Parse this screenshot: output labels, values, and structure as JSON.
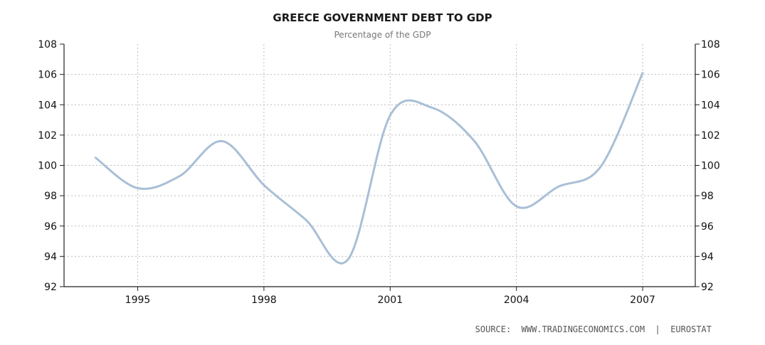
{
  "chart_data": {
    "type": "line",
    "title": "GREECE GOVERNMENT DEBT TO GDP",
    "subtitle": "Percentage of the GDP",
    "xlabel": "",
    "ylabel": "",
    "xlim": [
      1993.25,
      2008.25
    ],
    "ylim": [
      92,
      108
    ],
    "x_ticks": [
      1995,
      1998,
      2001,
      2004,
      2007
    ],
    "y_ticks": [
      92,
      94,
      96,
      98,
      100,
      102,
      104,
      106,
      108
    ],
    "grid": true,
    "legend": "none",
    "series": [
      {
        "x": [
          1994,
          1995,
          1996,
          1997,
          1998,
          1999,
          2000,
          2001,
          2002,
          2003,
          2004,
          2005,
          2006,
          2007
        ],
        "values": [
          100.5,
          98.5,
          99.3,
          101.6,
          98.7,
          96.4,
          93.8,
          103.3,
          103.8,
          101.6,
          97.3,
          98.6,
          99.9,
          106.1
        ]
      }
    ],
    "colors": {
      "line": "#a9bfd6",
      "grid": "#bdbdbd",
      "axis": "#222222"
    },
    "source": "SOURCE:  WWW.TRADINGECONOMICS.COM  |  EUROSTAT"
  }
}
